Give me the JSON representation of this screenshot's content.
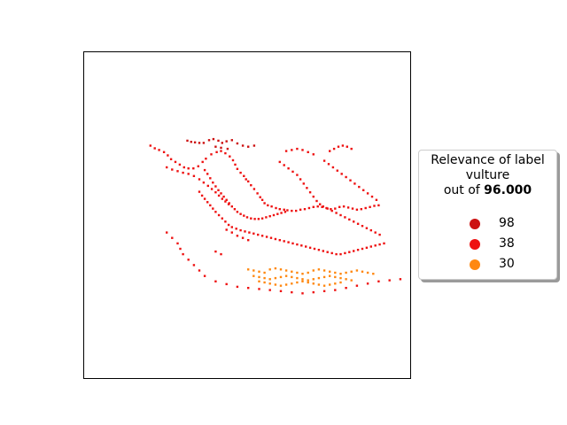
{
  "chart_data": {
    "type": "scatter",
    "legend": {
      "title_line1": "Relevance of label",
      "title_line2": "vulture",
      "title_prefix": "out of ",
      "title_value": "96.000",
      "placement": "right",
      "entries": [
        {
          "label": "98",
          "color": "#cc1111"
        },
        {
          "label": "38",
          "color": "#ee1111"
        },
        {
          "label": "30",
          "color": "#ff8811"
        }
      ]
    },
    "axes": {
      "xticks": false,
      "yticks": false,
      "grid": false
    },
    "series": [
      {
        "level": "98",
        "color": "#cc1111",
        "points": [
          [
            188,
            161
          ],
          [
            195,
            163
          ],
          [
            202,
            164
          ],
          [
            210,
            165
          ],
          [
            218,
            165
          ],
          [
            228,
            160
          ],
          [
            236,
            158
          ],
          [
            245,
            161
          ],
          [
            252,
            165
          ],
          [
            260,
            162
          ],
          [
            270,
            160
          ],
          [
            280,
            166
          ],
          [
            290,
            170
          ],
          [
            300,
            172
          ],
          [
            311,
            170
          ],
          [
            240,
            172
          ],
          [
            250,
            174
          ],
          [
            262,
            176
          ]
        ]
      },
      {
        "level": "38",
        "color": "#ee1111",
        "points": [
          [
            120,
            170
          ],
          [
            128,
            175
          ],
          [
            136,
            178
          ],
          [
            145,
            182
          ],
          [
            152,
            188
          ],
          [
            158,
            195
          ],
          [
            166,
            200
          ],
          [
            174,
            205
          ],
          [
            182,
            210
          ],
          [
            190,
            212
          ],
          [
            199,
            212
          ],
          [
            208,
            208
          ],
          [
            216,
            200
          ],
          [
            222,
            194
          ],
          [
            232,
            186
          ],
          [
            242,
            182
          ],
          [
            250,
            180
          ],
          [
            258,
            184
          ],
          [
            266,
            190
          ],
          [
            272,
            197
          ],
          [
            276,
            205
          ],
          [
            280,
            213
          ],
          [
            286,
            220
          ],
          [
            292,
            226
          ],
          [
            296,
            232
          ],
          [
            300,
            236
          ],
          [
            305,
            243
          ],
          [
            311,
            250
          ],
          [
            317,
            258
          ],
          [
            322,
            265
          ],
          [
            326,
            270
          ],
          [
            330,
            276
          ],
          [
            336,
            280
          ],
          [
            343,
            282
          ],
          [
            351,
            285
          ],
          [
            358,
            287
          ],
          [
            366,
            288
          ],
          [
            372,
            289
          ],
          [
            380,
            290
          ],
          [
            388,
            290
          ],
          [
            396,
            288
          ],
          [
            404,
            287
          ],
          [
            412,
            285
          ],
          [
            420,
            283
          ],
          [
            428,
            282
          ],
          [
            436,
            283
          ],
          [
            444,
            285
          ],
          [
            452,
            287
          ],
          [
            460,
            286
          ],
          [
            468,
            283
          ],
          [
            476,
            282
          ],
          [
            484,
            284
          ],
          [
            492,
            286
          ],
          [
            500,
            288
          ],
          [
            508,
            287
          ],
          [
            516,
            285
          ],
          [
            524,
            283
          ],
          [
            532,
            281
          ],
          [
            540,
            280
          ],
          [
            220,
            215
          ],
          [
            225,
            222
          ],
          [
            230,
            230
          ],
          [
            235,
            238
          ],
          [
            240,
            245
          ],
          [
            245,
            252
          ],
          [
            250,
            258
          ],
          [
            255,
            264
          ],
          [
            260,
            270
          ],
          [
            265,
            276
          ],
          [
            270,
            282
          ],
          [
            275,
            287
          ],
          [
            280,
            292
          ],
          [
            286,
            296
          ],
          [
            292,
            299
          ],
          [
            298,
            302
          ],
          [
            305,
            304
          ],
          [
            312,
            305
          ],
          [
            319,
            305
          ],
          [
            326,
            304
          ],
          [
            333,
            302
          ],
          [
            340,
            300
          ],
          [
            347,
            298
          ],
          [
            354,
            296
          ],
          [
            361,
            294
          ],
          [
            368,
            292
          ],
          [
            150,
            210
          ],
          [
            160,
            214
          ],
          [
            170,
            217
          ],
          [
            180,
            220
          ],
          [
            190,
            222
          ],
          [
            200,
            226
          ],
          [
            210,
            232
          ],
          [
            218,
            238
          ],
          [
            226,
            244
          ],
          [
            233,
            250
          ],
          [
            240,
            256
          ],
          [
            246,
            262
          ],
          [
            252,
            268
          ],
          [
            258,
            273
          ],
          [
            264,
            278
          ],
          [
            210,
            255
          ],
          [
            215,
            262
          ],
          [
            220,
            268
          ],
          [
            225,
            274
          ],
          [
            230,
            280
          ],
          [
            235,
            286
          ],
          [
            240,
            292
          ],
          [
            246,
            298
          ],
          [
            252,
            304
          ],
          [
            258,
            310
          ],
          [
            264,
            316
          ],
          [
            270,
            320
          ],
          [
            278,
            323
          ],
          [
            286,
            326
          ],
          [
            294,
            328
          ],
          [
            302,
            330
          ],
          [
            310,
            332
          ],
          [
            318,
            334
          ],
          [
            326,
            336
          ],
          [
            334,
            338
          ],
          [
            342,
            340
          ],
          [
            350,
            342
          ],
          [
            358,
            344
          ],
          [
            366,
            346
          ],
          [
            374,
            348
          ],
          [
            382,
            350
          ],
          [
            390,
            352
          ],
          [
            398,
            354
          ],
          [
            406,
            356
          ],
          [
            414,
            358
          ],
          [
            422,
            360
          ],
          [
            430,
            362
          ],
          [
            438,
            364
          ],
          [
            446,
            366
          ],
          [
            454,
            368
          ],
          [
            462,
            370
          ],
          [
            470,
            370
          ],
          [
            478,
            368
          ],
          [
            486,
            366
          ],
          [
            494,
            364
          ],
          [
            502,
            362
          ],
          [
            510,
            360
          ],
          [
            518,
            358
          ],
          [
            526,
            356
          ],
          [
            534,
            354
          ],
          [
            542,
            352
          ],
          [
            550,
            350
          ],
          [
            358,
            200
          ],
          [
            366,
            206
          ],
          [
            374,
            212
          ],
          [
            382,
            218
          ],
          [
            390,
            224
          ],
          [
            396,
            232
          ],
          [
            402,
            240
          ],
          [
            408,
            248
          ],
          [
            414,
            256
          ],
          [
            420,
            264
          ],
          [
            426,
            272
          ],
          [
            432,
            278
          ],
          [
            438,
            282
          ],
          [
            446,
            286
          ],
          [
            454,
            290
          ],
          [
            462,
            294
          ],
          [
            470,
            298
          ],
          [
            478,
            302
          ],
          [
            486,
            306
          ],
          [
            494,
            310
          ],
          [
            502,
            314
          ],
          [
            510,
            318
          ],
          [
            518,
            322
          ],
          [
            526,
            326
          ],
          [
            534,
            330
          ],
          [
            542,
            334
          ],
          [
            440,
            198
          ],
          [
            448,
            204
          ],
          [
            456,
            210
          ],
          [
            464,
            216
          ],
          [
            472,
            222
          ],
          [
            480,
            228
          ],
          [
            488,
            234
          ],
          [
            496,
            240
          ],
          [
            504,
            246
          ],
          [
            512,
            252
          ],
          [
            520,
            258
          ],
          [
            528,
            264
          ],
          [
            536,
            270
          ],
          [
            450,
            180
          ],
          [
            458,
            176
          ],
          [
            466,
            172
          ],
          [
            474,
            170
          ],
          [
            482,
            172
          ],
          [
            490,
            176
          ],
          [
            370,
            180
          ],
          [
            380,
            178
          ],
          [
            390,
            176
          ],
          [
            400,
            178
          ],
          [
            410,
            182
          ],
          [
            420,
            186
          ],
          [
            260,
            325
          ],
          [
            270,
            330
          ],
          [
            280,
            336
          ],
          [
            290,
            340
          ],
          [
            300,
            344
          ],
          [
            240,
            365
          ],
          [
            250,
            370
          ],
          [
            150,
            330
          ],
          [
            160,
            340
          ],
          [
            170,
            350
          ],
          [
            175,
            360
          ],
          [
            180,
            370
          ],
          [
            190,
            380
          ],
          [
            200,
            390
          ],
          [
            210,
            400
          ],
          [
            220,
            410
          ],
          [
            240,
            420
          ],
          [
            260,
            425
          ],
          [
            280,
            430
          ],
          [
            300,
            432
          ],
          [
            320,
            434
          ],
          [
            340,
            436
          ],
          [
            360,
            438
          ],
          [
            380,
            440
          ],
          [
            400,
            442
          ],
          [
            420,
            440
          ],
          [
            440,
            438
          ],
          [
            460,
            436
          ],
          [
            480,
            432
          ],
          [
            500,
            428
          ],
          [
            520,
            424
          ],
          [
            540,
            420
          ],
          [
            560,
            418
          ],
          [
            580,
            416
          ]
        ]
      },
      {
        "level": "30",
        "color": "#ff8811",
        "points": [
          [
            300,
            398
          ],
          [
            310,
            400
          ],
          [
            320,
            402
          ],
          [
            330,
            404
          ],
          [
            340,
            398
          ],
          [
            350,
            396
          ],
          [
            360,
            398
          ],
          [
            370,
            400
          ],
          [
            380,
            402
          ],
          [
            390,
            404
          ],
          [
            400,
            406
          ],
          [
            410,
            404
          ],
          [
            420,
            400
          ],
          [
            430,
            398
          ],
          [
            440,
            400
          ],
          [
            450,
            402
          ],
          [
            460,
            404
          ],
          [
            470,
            406
          ],
          [
            480,
            404
          ],
          [
            490,
            402
          ],
          [
            500,
            400
          ],
          [
            510,
            402
          ],
          [
            520,
            404
          ],
          [
            530,
            406
          ],
          [
            310,
            410
          ],
          [
            320,
            412
          ],
          [
            330,
            414
          ],
          [
            340,
            416
          ],
          [
            350,
            414
          ],
          [
            360,
            412
          ],
          [
            370,
            410
          ],
          [
            380,
            412
          ],
          [
            390,
            414
          ],
          [
            400,
            416
          ],
          [
            410,
            418
          ],
          [
            420,
            416
          ],
          [
            430,
            414
          ],
          [
            440,
            412
          ],
          [
            450,
            410
          ],
          [
            460,
            412
          ],
          [
            470,
            414
          ],
          [
            480,
            416
          ],
          [
            490,
            418
          ],
          [
            320,
            420
          ],
          [
            330,
            422
          ],
          [
            340,
            424
          ],
          [
            350,
            426
          ],
          [
            360,
            428
          ],
          [
            370,
            426
          ],
          [
            380,
            424
          ],
          [
            390,
            422
          ],
          [
            400,
            420
          ],
          [
            410,
            422
          ],
          [
            420,
            424
          ],
          [
            430,
            426
          ],
          [
            440,
            428
          ],
          [
            450,
            426
          ],
          [
            460,
            424
          ],
          [
            470,
            422
          ]
        ]
      }
    ]
  }
}
